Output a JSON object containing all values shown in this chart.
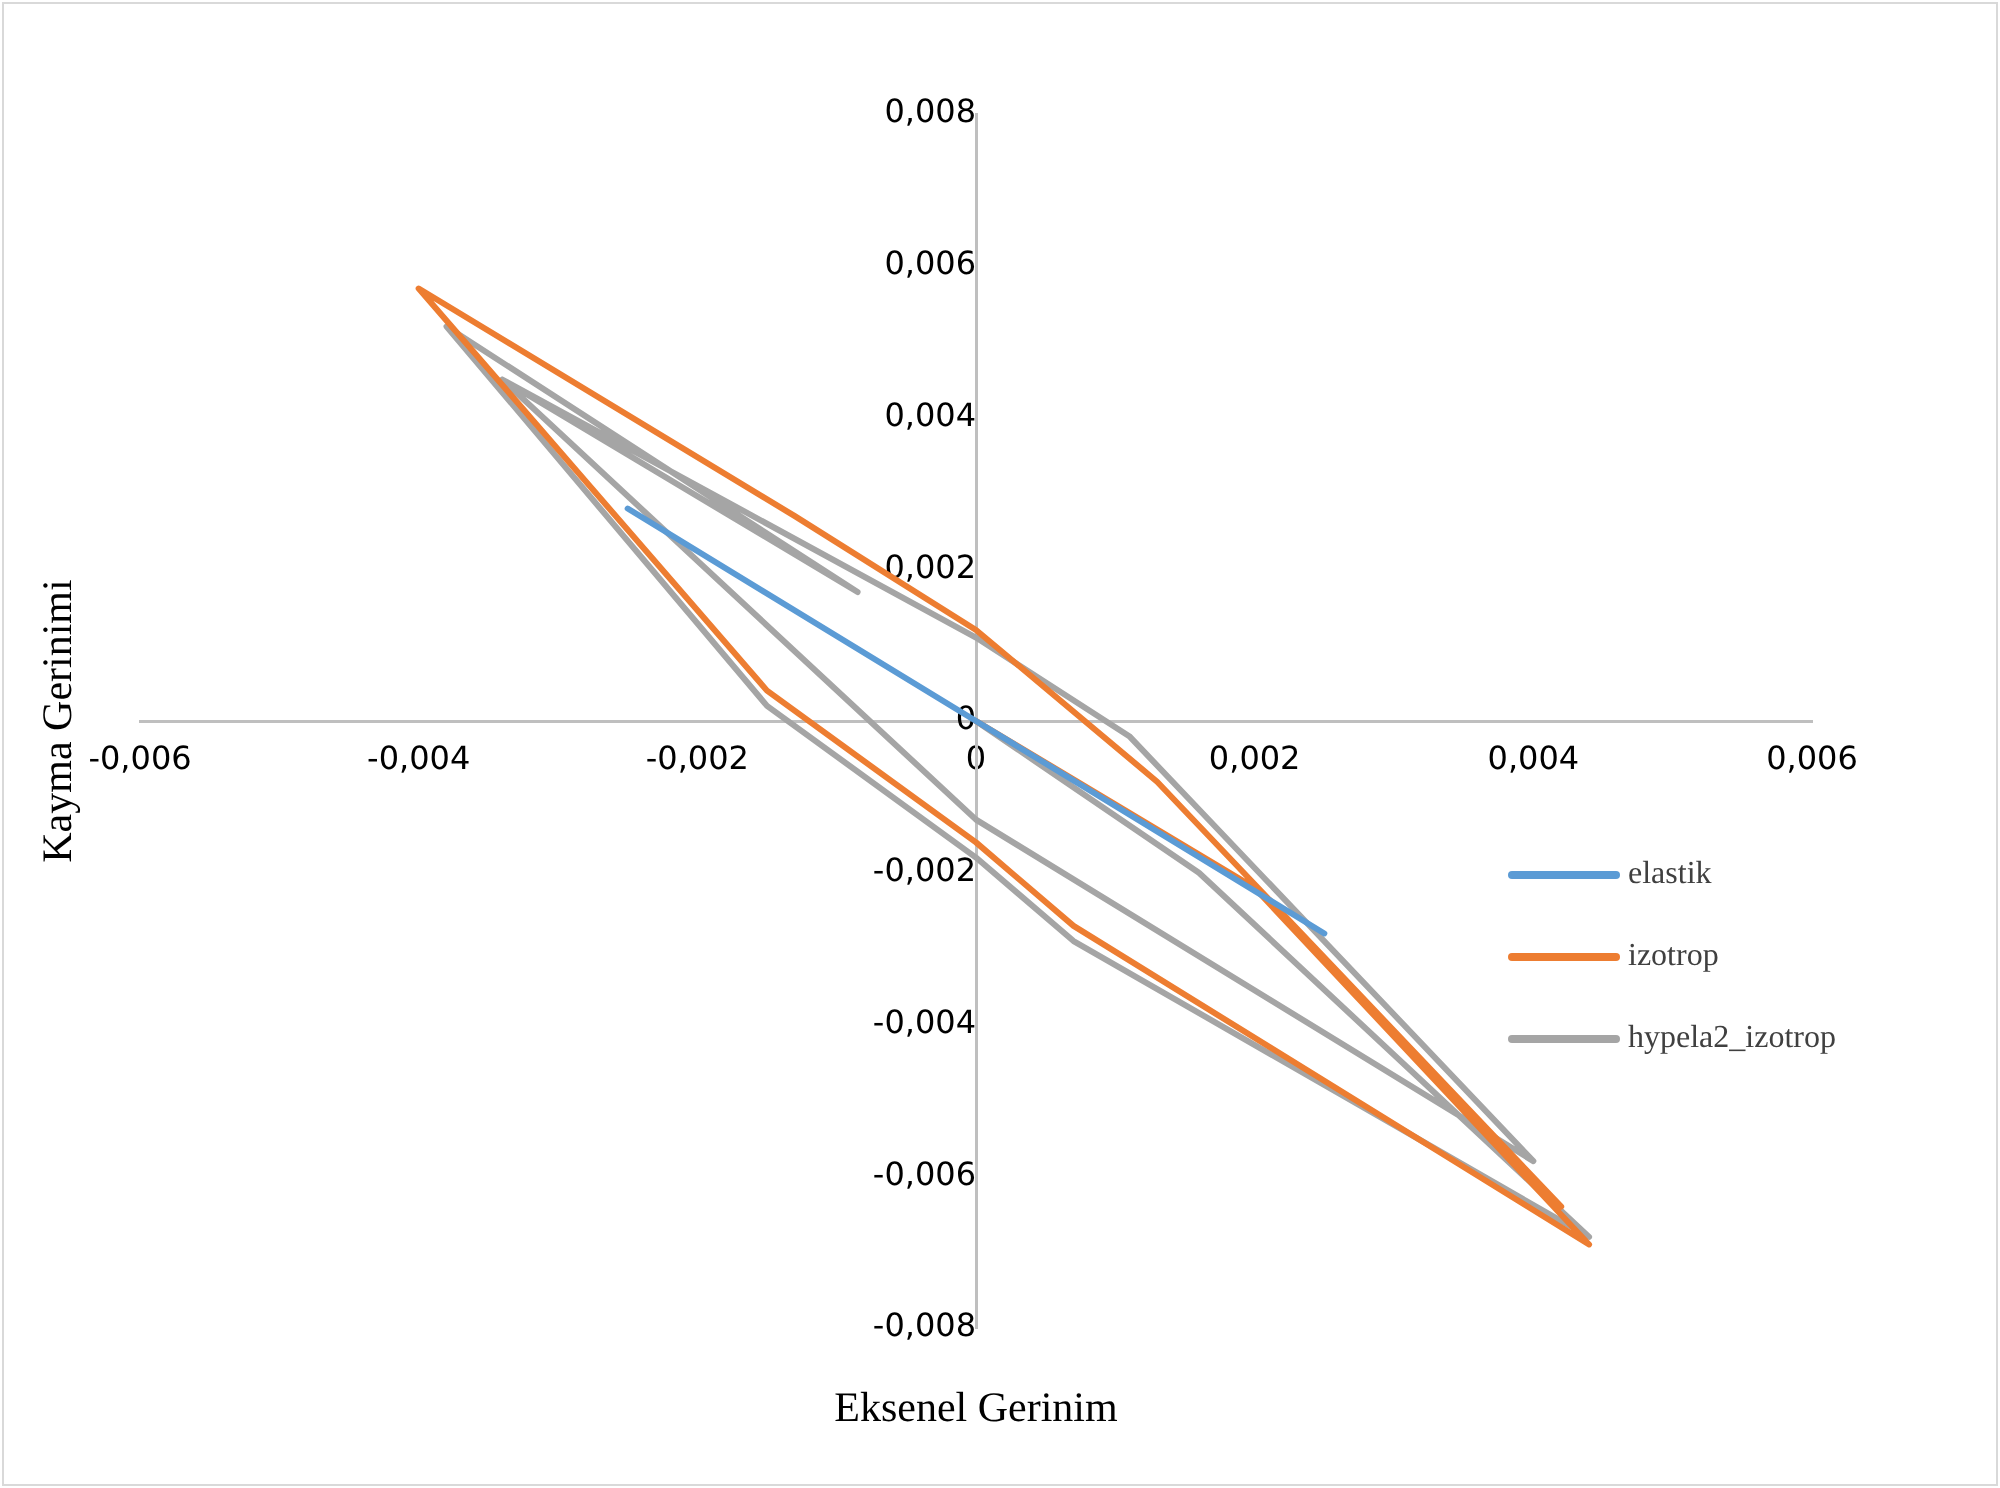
{
  "chart_data": {
    "type": "line",
    "xlabel": "Eksenel Gerinim",
    "ylabel": "Kayma Gerinimi",
    "xlim": [
      -0.006,
      0.006
    ],
    "ylim": [
      -0.008,
      0.008
    ],
    "xticks": [
      {
        "value": -0.006,
        "label": "-0,006"
      },
      {
        "value": -0.004,
        "label": "-0,004"
      },
      {
        "value": -0.002,
        "label": "-0,002"
      },
      0,
      {
        "value": 0.002,
        "label": "0,002"
      },
      {
        "value": 0.004,
        "label": "0,004"
      },
      {
        "value": 0.006,
        "label": "0,006"
      }
    ],
    "yticks": [
      {
        "value": -0.008,
        "label": "-0,008"
      },
      {
        "value": -0.006,
        "label": "-0,006"
      },
      {
        "value": -0.004,
        "label": "-0,004"
      },
      {
        "value": -0.002,
        "label": "-0,002"
      },
      0,
      {
        "value": 0.002,
        "label": "0,002"
      },
      {
        "value": 0.004,
        "label": "0,004"
      },
      {
        "value": 0.006,
        "label": "0,006"
      },
      {
        "value": 0.008,
        "label": "0,008"
      }
    ],
    "grid": false,
    "legend": "right",
    "marker": "none",
    "line_style": "solid",
    "series": [
      {
        "name": "elastik",
        "color": "#5b9bd5",
        "x": [
          -0.0025,
          0,
          0.0025
        ],
        "values": [
          0.0028,
          0,
          -0.0028
        ]
      },
      {
        "name": "izotrop",
        "color": "#ed7d31",
        "x": [
          0,
          0.002,
          0.0044,
          0.0007,
          0,
          -0.0015,
          -0.004,
          -0.0013,
          0,
          0.0013,
          0.0042
        ],
        "values": [
          0,
          -0.0022,
          -0.0069,
          -0.0027,
          -0.0016,
          0.0004,
          0.0057,
          0.0027,
          0.0012,
          -0.0008,
          -0.0064
        ]
      },
      {
        "name": "hypela2_izotrop",
        "color": "#a5a5a5",
        "x": [
          0,
          0.0016,
          0.0044,
          0.0007,
          0,
          -0.0015,
          -0.0038,
          -0.00085,
          -0.0034,
          0,
          0.0011,
          0.004,
          0,
          -0.0034
        ],
        "values": [
          0,
          -0.002,
          -0.0068,
          -0.0029,
          -0.0018,
          0.0002,
          0.0052,
          0.0017,
          0.0045,
          0.0011,
          -0.0002,
          -0.0058,
          -0.0013,
          0.0045
        ]
      }
    ]
  }
}
